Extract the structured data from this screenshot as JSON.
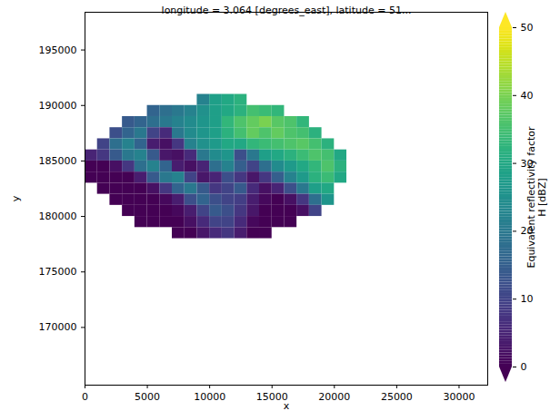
{
  "chart_data": {
    "type": "heatmap",
    "title": "longitude = 3.064 [degrees_east], latitude = 51...",
    "x_label": "x",
    "y_label": "y",
    "color": "viridis",
    "x": [
      500,
      1500,
      2500,
      3500,
      4500,
      5500,
      6500,
      7500,
      8500,
      9500,
      10500,
      11500,
      12500,
      13500,
      14500,
      15500,
      16500,
      17500,
      18500,
      19500,
      20500
    ],
    "y": [
      190500,
      189500,
      188500,
      187500,
      186500,
      185500,
      184500,
      183500,
      182500,
      181500,
      180500,
      179500,
      178500
    ],
    "values": [
      [
        null,
        null,
        null,
        null,
        null,
        null,
        null,
        null,
        null,
        22,
        28,
        30,
        32,
        null,
        null,
        null,
        null,
        null,
        null,
        null,
        null
      ],
      [
        null,
        null,
        null,
        null,
        null,
        16,
        18,
        20,
        22,
        25,
        28,
        30,
        32,
        35,
        34,
        33,
        null,
        null,
        null,
        null,
        null
      ],
      [
        null,
        null,
        null,
        14,
        16,
        18,
        20,
        22,
        24,
        26,
        28,
        33,
        36,
        38,
        40,
        37,
        36,
        33,
        null,
        null,
        null
      ],
      [
        null,
        null,
        12,
        16,
        20,
        10,
        6,
        20,
        24,
        26,
        28,
        32,
        35,
        38,
        36,
        38,
        36,
        35,
        32,
        null,
        null
      ],
      [
        null,
        10,
        18,
        22,
        16,
        4,
        2,
        8,
        22,
        25,
        27,
        30,
        30,
        33,
        34,
        35,
        36,
        37,
        35,
        32,
        null
      ],
      [
        5,
        8,
        14,
        20,
        22,
        14,
        3,
        2,
        6,
        20,
        24,
        26,
        12,
        20,
        28,
        30,
        32,
        34,
        36,
        35,
        30
      ],
      [
        0,
        0,
        2,
        8,
        18,
        22,
        16,
        4,
        2,
        5,
        18,
        22,
        15,
        10,
        18,
        24,
        27,
        30,
        33,
        36,
        32
      ],
      [
        -2,
        -3,
        -3,
        0,
        4,
        14,
        20,
        22,
        10,
        3,
        5,
        12,
        8,
        3,
        8,
        15,
        22,
        27,
        32,
        34,
        30
      ],
      [
        null,
        -3,
        -3,
        -2,
        0,
        2,
        8,
        16,
        20,
        14,
        8,
        10,
        14,
        6,
        2,
        5,
        12,
        20,
        28,
        30,
        null
      ],
      [
        null,
        null,
        -3,
        -3,
        -2,
        0,
        1,
        4,
        12,
        16,
        12,
        10,
        9,
        4,
        1,
        0,
        2,
        8,
        18,
        26,
        null
      ],
      [
        null,
        null,
        null,
        -3,
        -3,
        -2,
        0,
        1,
        4,
        10,
        14,
        12,
        8,
        3,
        0,
        -1,
        -1,
        2,
        10,
        null,
        null
      ],
      [
        null,
        null,
        null,
        null,
        -3,
        -3,
        -2,
        0,
        2,
        6,
        10,
        10,
        6,
        1,
        -1,
        -2,
        -2,
        null,
        null,
        null,
        null
      ],
      [
        null,
        null,
        null,
        null,
        null,
        null,
        null,
        -2,
        0,
        3,
        6,
        8,
        4,
        0,
        -2,
        null,
        null,
        null,
        null,
        null,
        null
      ]
    ],
    "xlim": [
      0,
      32300
    ],
    "ylim": [
      164800,
      198400
    ],
    "xticks": [
      0,
      5000,
      10000,
      15000,
      20000,
      25000,
      30000
    ],
    "yticks": [
      170000,
      175000,
      180000,
      185000,
      190000,
      195000
    ],
    "colorbar": {
      "label": "Equivalent reflectivity factor\nH [dBZ]",
      "range": [
        0,
        50
      ],
      "ticks": [
        0,
        10,
        20,
        30,
        40,
        50
      ]
    }
  }
}
